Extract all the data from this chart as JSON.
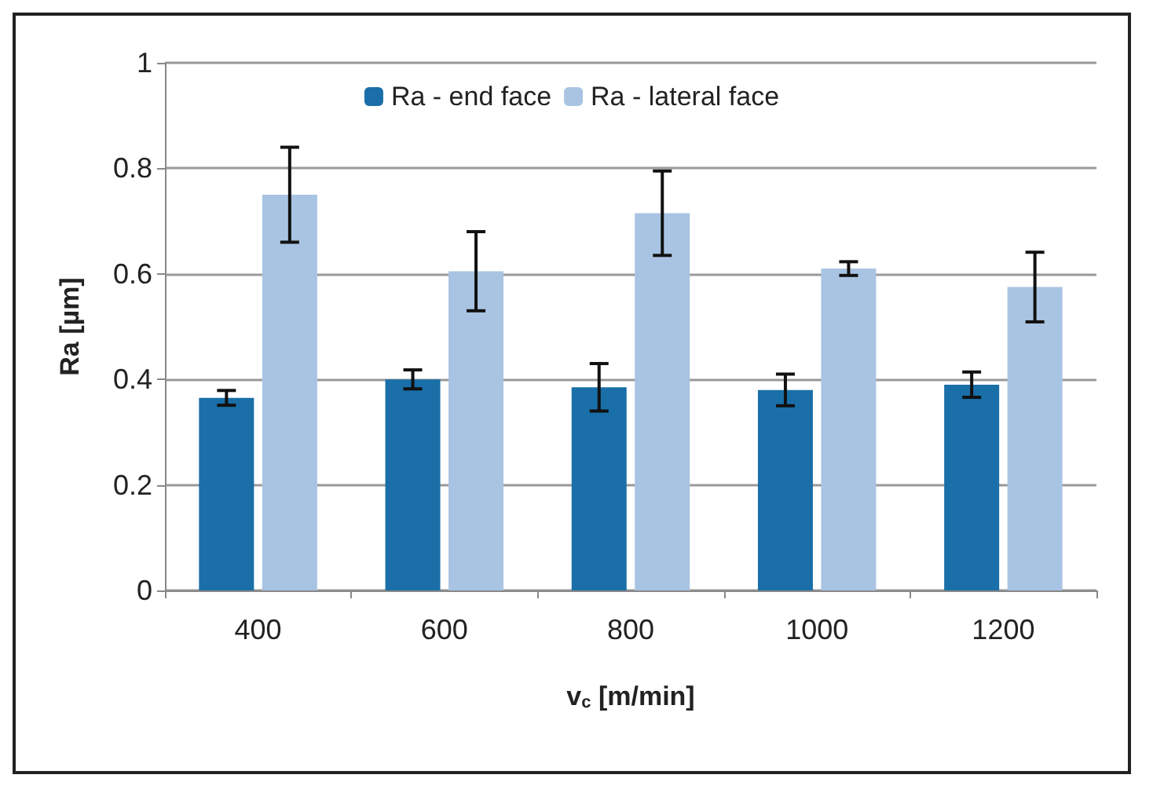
{
  "chart_data": {
    "type": "bar",
    "xlabel": "v$_{c}$ [m/min]",
    "ylabel": "Ra [µm]",
    "categories": [
      "400",
      "600",
      "800",
      "1000",
      "1200"
    ],
    "series": [
      {
        "name": "Ra - end face",
        "color": "#1a6fa8",
        "values": [
          0.365,
          0.4,
          0.385,
          0.38,
          0.39
        ],
        "errors": [
          0.014,
          0.018,
          0.045,
          0.03,
          0.024
        ]
      },
      {
        "name": "Ra - lateral face",
        "color": "#a9c4e2",
        "values": [
          0.75,
          0.605,
          0.715,
          0.61,
          0.575
        ],
        "errors": [
          0.09,
          0.075,
          0.08,
          0.013,
          0.066
        ]
      }
    ],
    "ylim": [
      0,
      1
    ],
    "yticks": [
      0,
      0.2,
      0.4,
      0.6,
      0.8,
      1
    ],
    "grid": "y",
    "legend": "top"
  }
}
